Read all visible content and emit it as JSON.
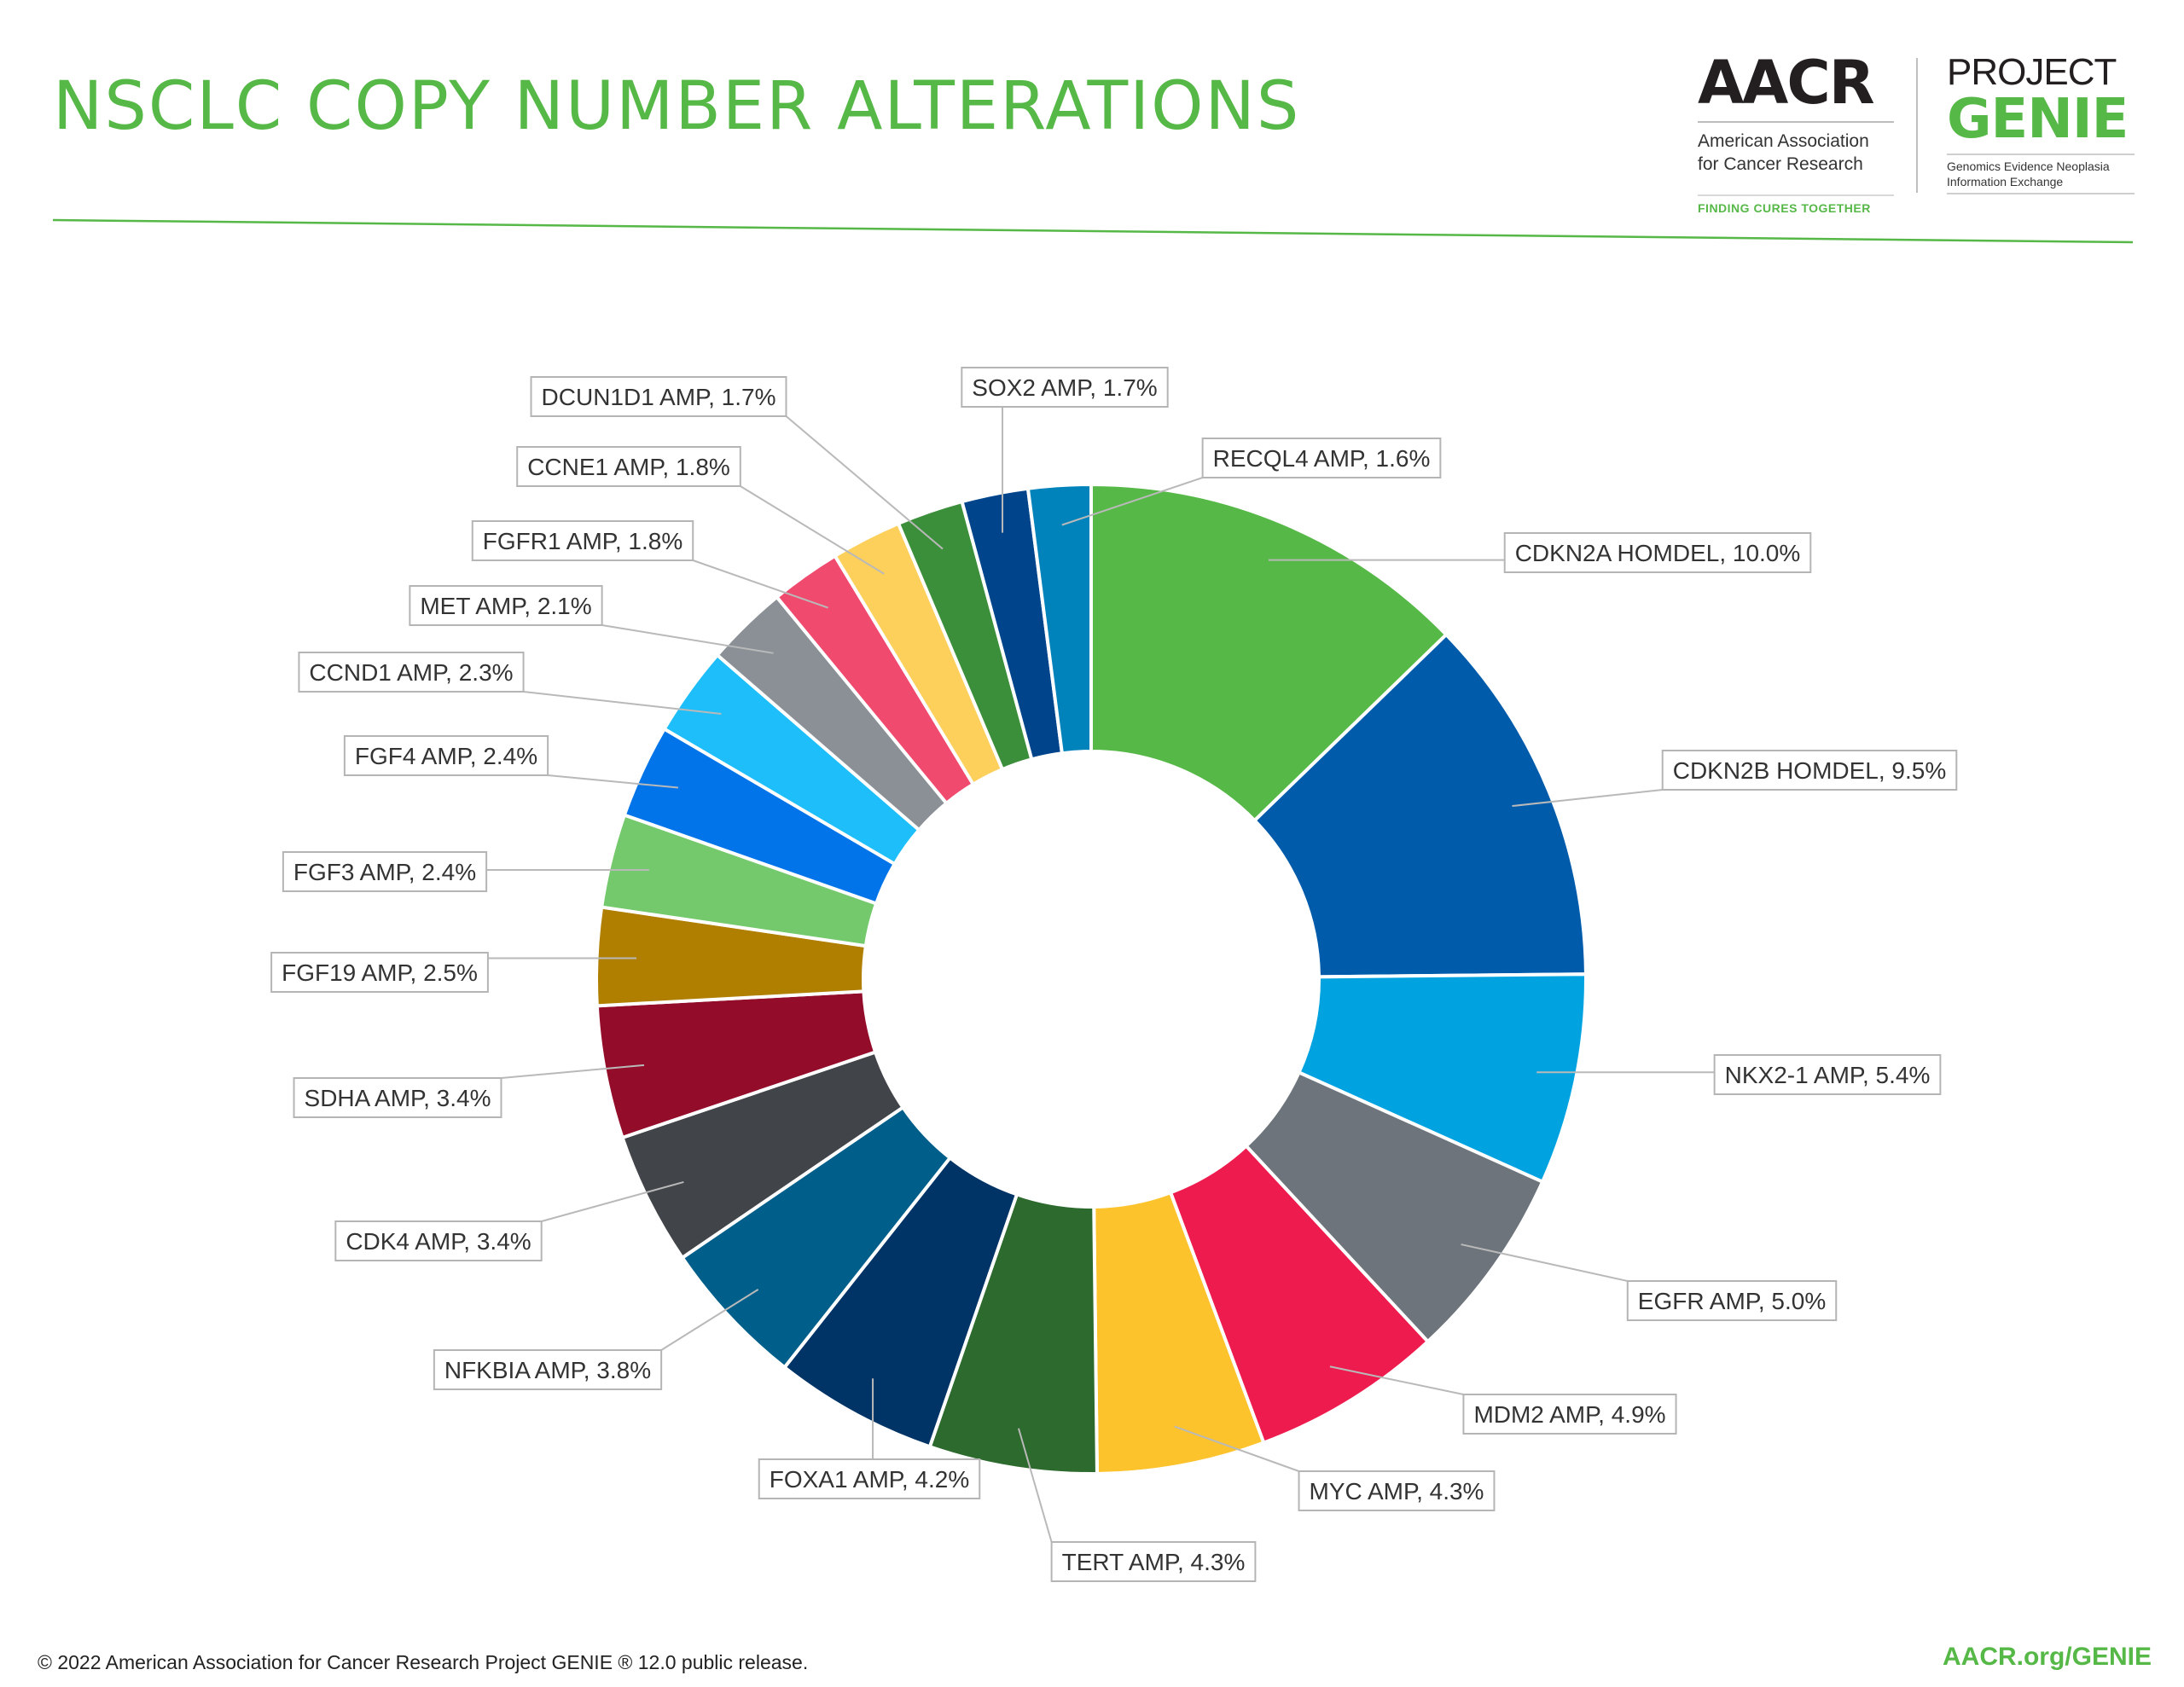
{
  "header": {
    "title": "NSCLC COPY NUMBER ALTERATIONS"
  },
  "logos": {
    "aacr_word": "AACR",
    "aacr_name_line1": "American Association",
    "aacr_name_line2": "for Cancer Research",
    "aacr_tagline": "FINDING CURES TOGETHER",
    "genie_project": "PROJECT",
    "genie_word": "GENIE",
    "genie_sub_line1": "Genomics Evidence Neoplasia",
    "genie_sub_line2": "Information Exchange"
  },
  "footer": {
    "copyright": "© 2022 American Association for Cancer Research Project GENIE ® 12.0 public release.",
    "url": "AACR.org/GENIE"
  },
  "chart_data": {
    "type": "pie",
    "donut": true,
    "title": "NSCLC COPY NUMBER ALTERATIONS",
    "legend": "none",
    "slices": [
      {
        "label": "CDKN2A HOMDEL, 10.0%",
        "value": 10.0,
        "color": "#56b847"
      },
      {
        "label": "CDKN2B HOMDEL, 9.5%",
        "value": 9.5,
        "color": "#005bab"
      },
      {
        "label": "NKX2-1 AMP, 5.4%",
        "value": 5.4,
        "color": "#00a3e0"
      },
      {
        "label": "EGFR AMP, 5.0%",
        "value": 5.0,
        "color": "#6d747b"
      },
      {
        "label": "MDM2 AMP, 4.9%",
        "value": 4.9,
        "color": "#ee1c4e"
      },
      {
        "label": "MYC AMP, 4.3%",
        "value": 4.3,
        "color": "#fdc32c"
      },
      {
        "label": "TERT AMP, 4.3%",
        "value": 4.3,
        "color": "#2d6a2e"
      },
      {
        "label": "FOXA1 AMP, 4.2%",
        "value": 4.2,
        "color": "#003366"
      },
      {
        "label": "NFKBIA AMP, 3.8%",
        "value": 3.8,
        "color": "#005f8a"
      },
      {
        "label": "CDK4 AMP, 3.4%",
        "value": 3.4,
        "color": "#414448"
      },
      {
        "label": "SDHA AMP, 3.4%",
        "value": 3.4,
        "color": "#930c2a"
      },
      {
        "label": "FGF19 AMP, 2.5%",
        "value": 2.5,
        "color": "#b07f00"
      },
      {
        "label": "FGF3 AMP, 2.4%",
        "value": 2.4,
        "color": "#73c96b"
      },
      {
        "label": "FGF4 AMP, 2.4%",
        "value": 2.4,
        "color": "#0074e8"
      },
      {
        "label": "CCND1 AMP, 2.3%",
        "value": 2.3,
        "color": "#1dbef9"
      },
      {
        "label": "MET AMP, 2.1%",
        "value": 2.1,
        "color": "#8a9096"
      },
      {
        "label": "FGFR1 AMP, 1.8%",
        "value": 1.8,
        "color": "#f04a6f"
      },
      {
        "label": "CCNE1 AMP, 1.8%",
        "value": 1.8,
        "color": "#fdd05c"
      },
      {
        "label": "DCUN1D1 AMP, 1.7%",
        "value": 1.7,
        "color": "#3c8f3a"
      },
      {
        "label": "SOX2 AMP, 1.7%",
        "value": 1.7,
        "color": "#00458c"
      },
      {
        "label": "RECQL4 AMP, 1.6%",
        "value": 1.6,
        "color": "#0083ba"
      }
    ]
  }
}
